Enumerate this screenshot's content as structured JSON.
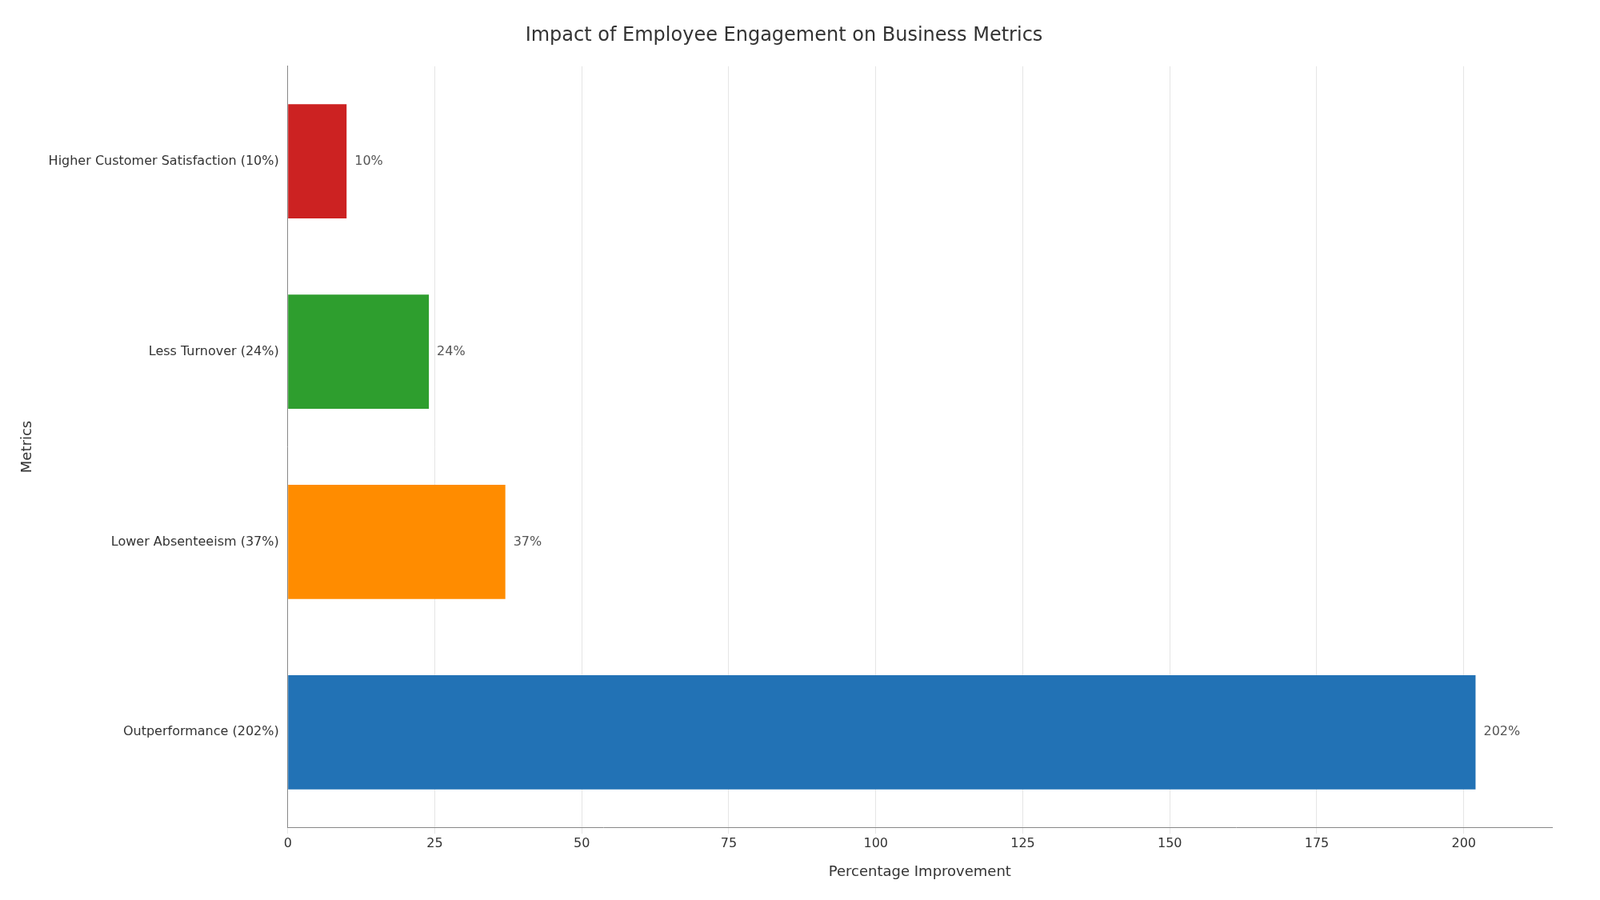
{
  "chart_data": {
    "type": "bar",
    "orientation": "horizontal",
    "title": "Impact of Employee Engagement on Business Metrics",
    "xlabel": "Percentage Improvement",
    "ylabel": "Metrics",
    "categories": [
      "Outperformance (202%)",
      "Lower Absenteeism (37%)",
      "Less Turnover (24%)",
      "Higher Customer Satisfaction (10%)"
    ],
    "values": [
      202,
      37,
      24,
      10
    ],
    "value_labels": [
      "202%",
      "37%",
      "24%",
      "10%"
    ],
    "colors": [
      "#2272b5",
      "#ff8c00",
      "#2e9e2e",
      "#cc2222"
    ],
    "xlim": [
      0,
      215
    ],
    "xticks": [
      0,
      25,
      50,
      75,
      100,
      125,
      150,
      175,
      200
    ],
    "grid": true,
    "data_labels": true
  }
}
